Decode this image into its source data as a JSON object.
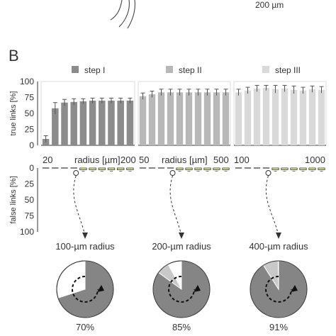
{
  "panel_label": "B",
  "scale_label": "200 µm",
  "colors": {
    "step1": "#8c8c8c",
    "step2": "#b8b8b8",
    "step3": "#d9d9d9",
    "false_box": "#e6f59a",
    "pie_dark": "#858585",
    "pie_light": "#c8c8c8"
  },
  "chart_data": [
    {
      "type": "bar",
      "name": "step I",
      "legend": "step I",
      "ylabel": "true links [%]",
      "xlabel": "radius [µm]",
      "x_start": "20",
      "x_end": "200",
      "ylim": [
        0,
        100
      ],
      "yticks": [
        "100",
        "75",
        "50",
        "25",
        "0"
      ],
      "values": [
        10,
        58,
        67,
        68,
        69,
        70,
        70,
        70,
        70,
        70
      ],
      "errors": [
        5,
        9,
        5,
        5,
        4,
        4,
        4,
        4,
        4,
        4
      ]
    },
    {
      "type": "bar",
      "name": "step II",
      "legend": "step II",
      "xlabel": "radius [µm]",
      "x_start": "50",
      "x_end": "500",
      "ylim": [
        0,
        100
      ],
      "values": [
        77,
        80,
        83,
        83,
        83,
        83,
        83,
        83,
        83,
        83
      ],
      "errors": [
        5,
        5,
        5,
        5,
        5,
        5,
        5,
        5,
        5,
        5
      ]
    },
    {
      "type": "bar",
      "name": "step III",
      "legend": "step III",
      "x_start": "100",
      "x_end": "1000",
      "ylim": [
        0,
        100
      ],
      "values": [
        83,
        86,
        89,
        90,
        88,
        89,
        87,
        86,
        88,
        87
      ],
      "errors": [
        5,
        5,
        5,
        4,
        6,
        5,
        6,
        5,
        5,
        5
      ]
    },
    {
      "type": "bar",
      "name": "false links",
      "ylabel": "false links [%]",
      "ylim": [
        0,
        100
      ],
      "yticks": [
        "0",
        "25",
        "50",
        "75",
        "100"
      ],
      "groups": [
        {
          "dashed_until": 4,
          "values": [
            0,
            0,
            0,
            0,
            1,
            1,
            1,
            1,
            1,
            1
          ]
        },
        {
          "dashed_until": 4,
          "values": [
            0,
            0,
            0,
            0,
            1,
            1,
            1,
            1,
            1,
            1
          ]
        },
        {
          "dashed_until": 4,
          "values": [
            0,
            0,
            0,
            0,
            1,
            2,
            2,
            2,
            2,
            2
          ]
        }
      ]
    },
    {
      "type": "pie",
      "pies": [
        {
          "title": "100-µm radius",
          "value": 70,
          "label": "70%"
        },
        {
          "title": "200-µm radius",
          "value": 85,
          "label": "85%"
        },
        {
          "title": "400-µm radius",
          "value": 91,
          "label": "91%"
        }
      ]
    }
  ]
}
